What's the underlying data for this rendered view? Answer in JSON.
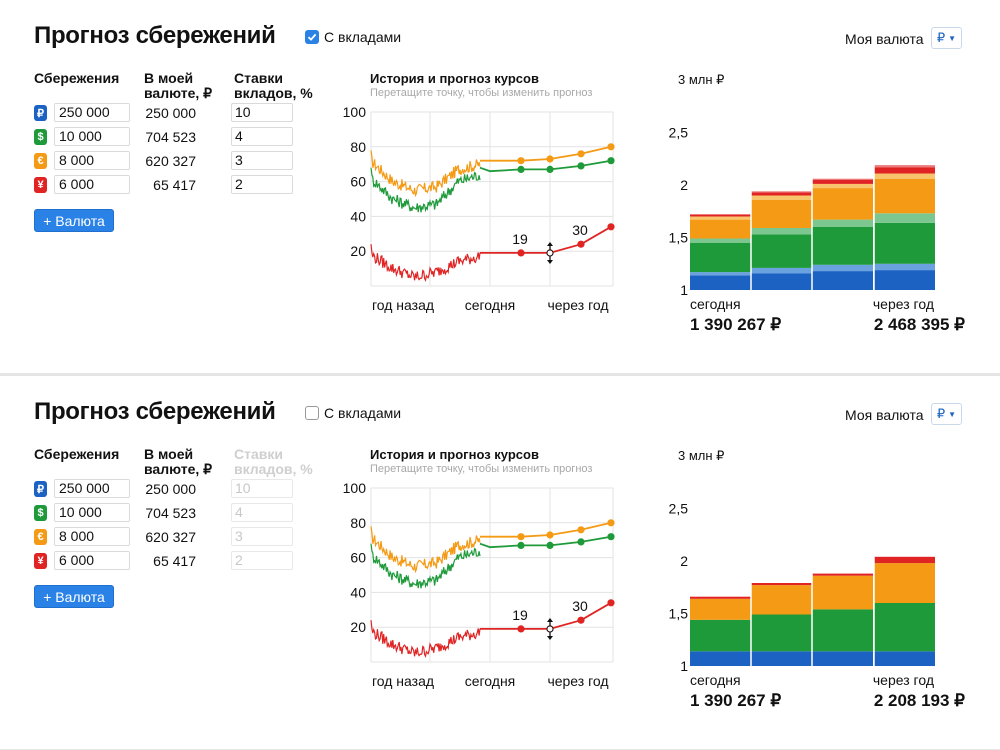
{
  "panels": [
    {
      "title": "Прогноз сбережений",
      "checkbox_label": "С вкладами",
      "checkbox_checked": true,
      "currency_label": "Моя валюта",
      "currency_value": "₽",
      "headers": {
        "savings": "Сбережения",
        "my_currency_1": "В моей",
        "my_currency_2": "валюте, ₽",
        "rates_1": "Ставки",
        "rates_2": "вкладов, %"
      },
      "rows": [
        {
          "icon": "ruble-icon",
          "glyph": "₽",
          "color": "#1b62c2",
          "amount": "250 000",
          "converted": "250 000",
          "rate": "10"
        },
        {
          "icon": "dollar-icon",
          "glyph": "$",
          "color": "#1e9a3a",
          "amount": "10 000",
          "converted": "704 523",
          "rate": "4"
        },
        {
          "icon": "euro-icon",
          "glyph": "€",
          "color": "#f59a14",
          "amount": "8 000",
          "converted": "620 327",
          "rate": "3"
        },
        {
          "icon": "yen-icon",
          "glyph": "¥",
          "color": "#e02424",
          "amount": "6 000",
          "converted": "65 417",
          "rate": "2"
        }
      ],
      "add_button": "+ Валюта",
      "line_chart": {
        "title": "История и прогноз курсов",
        "subtitle": "Перетащите точку, чтобы изменить прогноз",
        "y_ticks": [
          "100",
          "80",
          "60",
          "40",
          "20"
        ],
        "x_labels": [
          "год назад",
          "сегодня",
          "через год"
        ],
        "point_labels": [
          "19",
          "30"
        ]
      },
      "bar_chart": {
        "y_label": "3 млн ₽",
        "y_ticks": [
          "2,5",
          "2",
          "1,5",
          "1"
        ],
        "left_label": "сегодня",
        "right_label": "через год",
        "left_value": "1 390 267 ₽",
        "right_value": "2 468 395 ₽"
      }
    },
    {
      "title": "Прогноз сбережений",
      "checkbox_label": "С вкладами",
      "checkbox_checked": false,
      "currency_label": "Моя валюта",
      "currency_value": "₽",
      "headers": {
        "savings": "Сбережения",
        "my_currency_1": "В моей",
        "my_currency_2": "валюте, ₽",
        "rates_1": "Ставки",
        "rates_2": "вкладов, %"
      },
      "rows": [
        {
          "icon": "ruble-icon",
          "glyph": "₽",
          "color": "#1b62c2",
          "amount": "250 000",
          "converted": "250 000",
          "rate": "10"
        },
        {
          "icon": "dollar-icon",
          "glyph": "$",
          "color": "#1e9a3a",
          "amount": "10 000",
          "converted": "704 523",
          "rate": "4"
        },
        {
          "icon": "euro-icon",
          "glyph": "€",
          "color": "#f59a14",
          "amount": "8 000",
          "converted": "620 327",
          "rate": "3"
        },
        {
          "icon": "yen-icon",
          "glyph": "¥",
          "color": "#e02424",
          "amount": "6 000",
          "converted": "65 417",
          "rate": "2"
        }
      ],
      "add_button": "+ Валюта",
      "line_chart": {
        "title": "История и прогноз курсов",
        "subtitle": "Перетащите точку, чтобы изменить прогноз",
        "y_ticks": [
          "100",
          "80",
          "60",
          "40",
          "20"
        ],
        "x_labels": [
          "год назад",
          "сегодня",
          "через год"
        ],
        "point_labels": [
          "19",
          "30"
        ]
      },
      "bar_chart": {
        "y_label": "3 млн ₽",
        "y_ticks": [
          "2,5",
          "2",
          "1,5",
          "1"
        ],
        "left_label": "сегодня",
        "right_label": "через год",
        "left_value": "1 390 267 ₽",
        "right_value": "2 208 193 ₽"
      }
    }
  ],
  "chart_data": [
    {
      "type": "line",
      "title": "История и прогноз курсов",
      "ylim": [
        0,
        100
      ],
      "x": [
        "год назад",
        "сегодня",
        "через год"
      ],
      "series": [
        {
          "color": "#f59a14",
          "history": [
            72,
            60,
            55,
            57,
            67,
            70
          ],
          "forecast": [
            72,
            72,
            72,
            73,
            76,
            80
          ]
        },
        {
          "color": "#1e9a3a",
          "history": [
            62,
            50,
            45,
            47,
            60,
            64
          ],
          "forecast": [
            68,
            66,
            67,
            67,
            69,
            72
          ]
        },
        {
          "color": "#e02424",
          "history": [
            18,
            10,
            5,
            8,
            14,
            17
          ],
          "forecast": [
            19,
            19,
            19,
            19,
            24,
            34
          ]
        }
      ]
    },
    {
      "type": "bar",
      "title": "",
      "ylabel": "3 млн ₽",
      "ylim": [
        1,
        3
      ],
      "categories": [
        "сегодня",
        "",
        "",
        "через год"
      ],
      "series": [
        {
          "name": "₽",
          "color": "#1b62c2",
          "values": [
            0.14,
            0.16,
            0.18,
            0.19
          ]
        },
        {
          "name": "₽ вклад",
          "color": "#6aa2e0",
          "values": [
            0.03,
            0.05,
            0.06,
            0.06
          ]
        },
        {
          "name": "$",
          "color": "#1e9a3a",
          "values": [
            0.28,
            0.32,
            0.36,
            0.39
          ]
        },
        {
          "name": "$ вклад",
          "color": "#7cc78f",
          "values": [
            0.04,
            0.06,
            0.07,
            0.09
          ]
        },
        {
          "name": "€",
          "color": "#f59a14",
          "values": [
            0.18,
            0.27,
            0.3,
            0.33
          ]
        },
        {
          "name": "€ вклад",
          "color": "#f8c56c",
          "values": [
            0.03,
            0.04,
            0.04,
            0.05
          ]
        },
        {
          "name": "¥",
          "color": "#e02424",
          "values": [
            0.02,
            0.03,
            0.04,
            0.06
          ]
        },
        {
          "name": "¥ вклад",
          "color": "#ee7b7b",
          "values": [
            0.0,
            0.01,
            0.01,
            0.02
          ]
        }
      ]
    },
    {
      "type": "line",
      "title": "История и прогноз курсов",
      "ylim": [
        0,
        100
      ],
      "x": [
        "год назад",
        "сегодня",
        "через год"
      ],
      "series": [
        {
          "color": "#f59a14",
          "history": [
            72,
            60,
            55,
            57,
            67,
            70
          ],
          "forecast": [
            72,
            72,
            72,
            73,
            76,
            80
          ]
        },
        {
          "color": "#1e9a3a",
          "history": [
            62,
            50,
            45,
            47,
            60,
            64
          ],
          "forecast": [
            68,
            66,
            67,
            67,
            69,
            72
          ]
        },
        {
          "color": "#e02424",
          "history": [
            18,
            10,
            5,
            8,
            14,
            17
          ],
          "forecast": [
            19,
            19,
            19,
            19,
            24,
            34
          ]
        }
      ]
    },
    {
      "type": "bar",
      "title": "",
      "ylabel": "3 млн ₽",
      "ylim": [
        1,
        3
      ],
      "categories": [
        "сегодня",
        "",
        "",
        "через год"
      ],
      "series": [
        {
          "name": "₽",
          "color": "#1b62c2",
          "values": [
            0.14,
            0.14,
            0.14,
            0.14
          ]
        },
        {
          "name": "$",
          "color": "#1e9a3a",
          "values": [
            0.3,
            0.35,
            0.4,
            0.46
          ]
        },
        {
          "name": "€",
          "color": "#f59a14",
          "values": [
            0.2,
            0.28,
            0.32,
            0.38
          ]
        },
        {
          "name": "¥",
          "color": "#e02424",
          "values": [
            0.02,
            0.02,
            0.02,
            0.06
          ]
        }
      ]
    }
  ]
}
